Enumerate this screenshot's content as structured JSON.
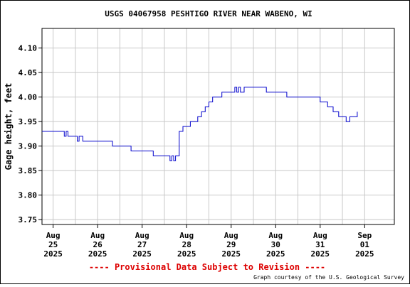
{
  "chart_data": {
    "type": "line",
    "title": "USGS 04067958 PESHTIGO RIVER NEAR WABENO, WI",
    "ylabel": "Gage height, feet",
    "xlabel": "",
    "ylim": [
      3.74,
      4.14
    ],
    "y_ticks": [
      "3.75",
      "3.80",
      "3.85",
      "3.90",
      "3.95",
      "4.00",
      "4.05",
      "4.10"
    ],
    "xlim": [
      "2025-08-24 18:00",
      "2025-09-01 16:00"
    ],
    "x_ticks": [
      {
        "lines": [
          "Aug",
          "25",
          "2025"
        ]
      },
      {
        "lines": [
          "Aug",
          "26",
          "2025"
        ]
      },
      {
        "lines": [
          "Aug",
          "27",
          "2025"
        ]
      },
      {
        "lines": [
          "Aug",
          "28",
          "2025"
        ]
      },
      {
        "lines": [
          "Aug",
          "29",
          "2025"
        ]
      },
      {
        "lines": [
          "Aug",
          "30",
          "2025"
        ]
      },
      {
        "lines": [
          "Aug",
          "31",
          "2025"
        ]
      },
      {
        "lines": [
          "Sep",
          "01",
          "2025"
        ]
      }
    ],
    "grid": true,
    "line_color": "#0000cc",
    "series": [
      {
        "x": [
          "2025-08-24 18:00",
          "2025-08-25 00:00",
          "2025-08-25 06:00",
          "2025-08-25 07:00",
          "2025-08-25 08:00",
          "2025-08-25 11:00",
          "2025-08-25 13:00",
          "2025-08-25 14:00",
          "2025-08-25 16:00",
          "2025-08-25 21:00",
          "2025-08-26 08:00",
          "2025-08-26 12:00",
          "2025-08-26 18:00",
          "2025-08-26 20:00",
          "2025-08-27 02:00",
          "2025-08-27 06:00",
          "2025-08-27 08:00",
          "2025-08-27 12:00",
          "2025-08-27 15:00",
          "2025-08-27 16:00",
          "2025-08-27 17:00",
          "2025-08-27 18:00",
          "2025-08-27 20:00",
          "2025-08-27 22:00",
          "2025-08-28 00:00",
          "2025-08-28 02:00",
          "2025-08-28 04:00",
          "2025-08-28 06:00",
          "2025-08-28 08:00",
          "2025-08-28 10:00",
          "2025-08-28 12:00",
          "2025-08-28 14:00",
          "2025-08-28 16:00",
          "2025-08-28 19:00",
          "2025-08-29 00:00",
          "2025-08-29 02:00",
          "2025-08-29 03:00",
          "2025-08-29 04:00",
          "2025-08-29 05:00",
          "2025-08-29 07:00",
          "2025-08-29 12:00",
          "2025-08-29 19:00",
          "2025-08-30 00:00",
          "2025-08-30 06:00",
          "2025-08-30 12:00",
          "2025-08-30 20:00",
          "2025-08-31 00:00",
          "2025-08-31 04:00",
          "2025-08-31 07:00",
          "2025-08-31 10:00",
          "2025-08-31 12:00",
          "2025-08-31 14:00",
          "2025-08-31 16:00",
          "2025-08-31 20:00"
        ],
        "y": [
          3.93,
          3.93,
          3.92,
          3.93,
          3.92,
          3.92,
          3.91,
          3.92,
          3.91,
          3.91,
          3.9,
          3.9,
          3.89,
          3.89,
          3.89,
          3.88,
          3.88,
          3.88,
          3.87,
          3.88,
          3.87,
          3.88,
          3.93,
          3.94,
          3.94,
          3.95,
          3.95,
          3.96,
          3.97,
          3.98,
          3.99,
          4.0,
          4.0,
          4.01,
          4.01,
          4.02,
          4.01,
          4.02,
          4.01,
          4.02,
          4.02,
          4.01,
          4.01,
          4.0,
          4.0,
          4.0,
          3.99,
          3.98,
          3.97,
          3.96,
          3.96,
          3.95,
          3.96,
          3.97
        ]
      }
    ]
  },
  "footer": {
    "provisional": "---- Provisional Data Subject to Revision ----",
    "credit": "Graph courtesy of the U.S. Geological Survey"
  }
}
